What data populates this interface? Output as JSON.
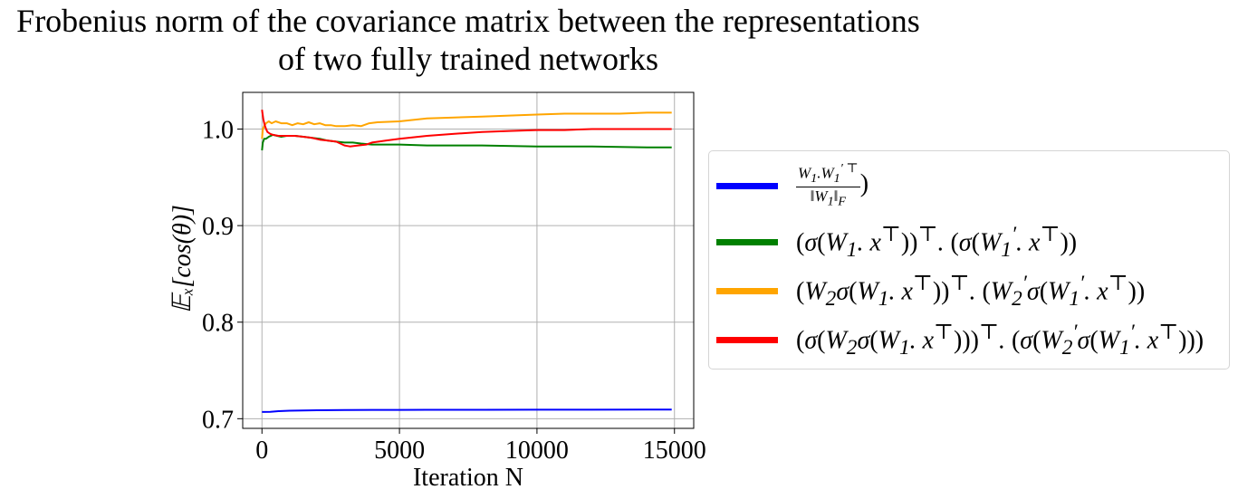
{
  "chart_data": {
    "type": "line",
    "title_lines": [
      "Frobenius norm of the covariance matrix between the representations",
      "of  two fully trained networks"
    ],
    "xlabel": "Iteration N",
    "ylabel": "𝔼ₓ[cos(θ)]",
    "xlim": [
      -700,
      15700
    ],
    "ylim": [
      0.69,
      1.038
    ],
    "xticks": [
      0,
      5000,
      10000,
      15000
    ],
    "xtick_labels": [
      "0",
      "5000",
      "10000",
      "15000"
    ],
    "yticks": [
      0.7,
      0.8,
      0.9,
      1.0
    ],
    "ytick_labels": [
      "0.7",
      "0.8",
      "0.9",
      "1.0"
    ],
    "grid": true,
    "legend_position": "outside-right",
    "series": [
      {
        "name": "W₁.W′₁ᵀ / ‖W₁‖F )",
        "color": "#0000ff",
        "x": [
          0,
          300,
          600,
          1000,
          1500,
          2000,
          3000,
          4000,
          5000,
          6000,
          8000,
          10000,
          12000,
          14000,
          14900
        ],
        "y": [
          0.707,
          0.7072,
          0.7078,
          0.7083,
          0.7086,
          0.7088,
          0.709,
          0.7091,
          0.7091,
          0.7092,
          0.7092,
          0.7093,
          0.7093,
          0.7094,
          0.7094
        ]
      },
      {
        "name": "(σ(W₁.xᵀ))ᵀ.(σ(W′₁.xᵀ))",
        "color": "#008000",
        "x": [
          0,
          30,
          80,
          150,
          250,
          400,
          550,
          700,
          900,
          1200,
          1500,
          1800,
          2100,
          2400,
          2700,
          3000,
          3300,
          3600,
          4000,
          5000,
          6000,
          8000,
          10000,
          12000,
          14000,
          14900
        ],
        "y": [
          0.978,
          0.986,
          0.99,
          0.99,
          0.992,
          0.994,
          0.993,
          0.992,
          0.993,
          0.993,
          0.992,
          0.991,
          0.99,
          0.988,
          0.987,
          0.986,
          0.986,
          0.985,
          0.984,
          0.984,
          0.983,
          0.983,
          0.982,
          0.982,
          0.981,
          0.981
        ]
      },
      {
        "name": "(W₂σ(W₁.xᵀ))ᵀ.(W′₂σ(W′₁.xᵀ))",
        "color": "#ffa500",
        "x": [
          0,
          30,
          80,
          150,
          250,
          350,
          500,
          700,
          900,
          1100,
          1300,
          1500,
          1700,
          1900,
          2100,
          2300,
          2500,
          2700,
          3000,
          3300,
          3600,
          3900,
          4200,
          5000,
          6000,
          7000,
          8000,
          9000,
          10000,
          11000,
          12000,
          13000,
          14000,
          14900
        ],
        "y": [
          0.99,
          1.0,
          1.003,
          1.006,
          1.008,
          1.006,
          1.008,
          1.006,
          1.006,
          1.004,
          1.006,
          1.005,
          1.007,
          1.005,
          1.006,
          1.004,
          1.004,
          1.003,
          1.003,
          1.004,
          1.003,
          1.006,
          1.007,
          1.008,
          1.011,
          1.012,
          1.013,
          1.014,
          1.015,
          1.016,
          1.016,
          1.016,
          1.017,
          1.017
        ]
      },
      {
        "name": "(σ(W₂σ(W₁.xᵀ)))ᵀ.(σ(W′₂σ(W′₁.xᵀ)))",
        "color": "#ff0000",
        "x": [
          0,
          20,
          50,
          100,
          150,
          200,
          300,
          400,
          600,
          900,
          1200,
          1500,
          1800,
          2100,
          2400,
          2700,
          3000,
          3200,
          3500,
          3800,
          4000,
          4500,
          5000,
          6000,
          7000,
          8000,
          9000,
          10000,
          11000,
          12000,
          13000,
          14000,
          14900
        ],
        "y": [
          1.02,
          1.016,
          1.01,
          1.004,
          1.0,
          0.997,
          0.995,
          0.994,
          0.993,
          0.993,
          0.993,
          0.992,
          0.991,
          0.989,
          0.988,
          0.987,
          0.983,
          0.982,
          0.983,
          0.984,
          0.986,
          0.988,
          0.99,
          0.993,
          0.995,
          0.997,
          0.998,
          0.999,
          0.999,
          1.0,
          1.0,
          1.0,
          1.0
        ]
      }
    ]
  }
}
